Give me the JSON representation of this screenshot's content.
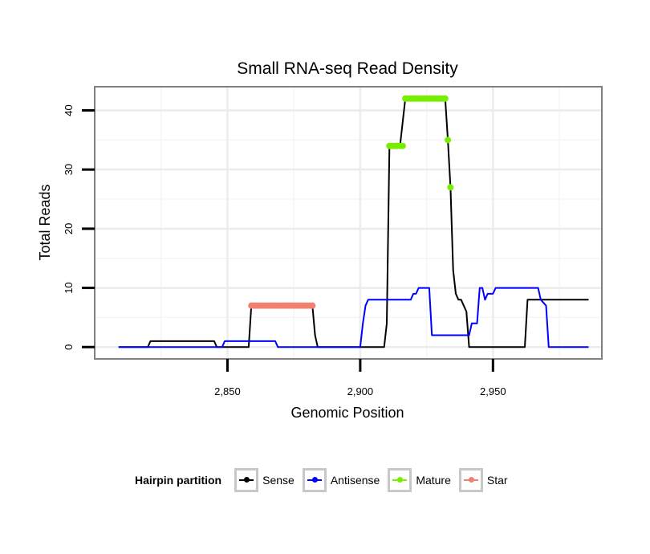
{
  "chart_data": {
    "type": "line",
    "title": "Small RNA-seq Read Density",
    "xlabel": "Genomic Position",
    "ylabel": "Total Reads",
    "xlim": [
      2800,
      2991
    ],
    "ylim": [
      -2,
      44
    ],
    "xticks": [
      2850,
      2900,
      2950
    ],
    "xtick_labels": [
      "2,850",
      "2,900",
      "2,950"
    ],
    "yticks": [
      0,
      10,
      20,
      30,
      40
    ],
    "ytick_labels": [
      "0",
      "10",
      "20",
      "30",
      "40"
    ],
    "grid": true,
    "legend_position": "bottom",
    "series": [
      {
        "name": "Sense",
        "color": "#000000",
        "style": "line",
        "x": [
          2809,
          2820,
          2821,
          2845,
          2846,
          2858,
          2859,
          2882,
          2883,
          2884,
          2909,
          2910,
          2911,
          2915,
          2916,
          2917,
          2932,
          2933,
          2934,
          2935,
          2936,
          2937,
          2938,
          2939,
          2940,
          2941,
          2962,
          2963,
          2986
        ],
        "y": [
          0,
          0,
          1,
          1,
          0,
          0,
          7,
          7,
          2,
          0,
          0,
          4,
          34,
          34,
          38,
          42,
          42,
          35,
          27,
          13,
          9,
          8,
          8,
          7,
          6,
          0,
          0,
          8,
          8
        ]
      },
      {
        "name": "Antisense",
        "color": "#0000ff",
        "style": "line",
        "x": [
          2809,
          2848,
          2849,
          2868,
          2869,
          2900,
          2901,
          2902,
          2903,
          2919,
          2920,
          2921,
          2922,
          2926,
          2927,
          2941,
          2942,
          2944,
          2945,
          2946,
          2947,
          2948,
          2949,
          2950,
          2951,
          2967,
          2968,
          2970,
          2971,
          2986
        ],
        "y": [
          0,
          0,
          1,
          1,
          0,
          0,
          4,
          7,
          8,
          8,
          9,
          9,
          10,
          10,
          2,
          2,
          4,
          4,
          10,
          10,
          8,
          9,
          9,
          9,
          10,
          10,
          8,
          7,
          0,
          0
        ]
      },
      {
        "name": "Mature",
        "color": "#76ee00",
        "style": "points",
        "x": [
          2911,
          2912,
          2913,
          2914,
          2915,
          2916,
          2917,
          2918,
          2919,
          2920,
          2921,
          2922,
          2923,
          2924,
          2925,
          2926,
          2927,
          2928,
          2929,
          2930,
          2931,
          2932,
          2933,
          2934
        ],
        "y": [
          34,
          34,
          34,
          34,
          34,
          34,
          42,
          42,
          42,
          42,
          42,
          42,
          42,
          42,
          42,
          42,
          42,
          42,
          42,
          42,
          42,
          42,
          35,
          27
        ]
      },
      {
        "name": "Star",
        "color": "#f08070",
        "style": "points",
        "x": [
          2859,
          2860,
          2861,
          2862,
          2863,
          2864,
          2865,
          2866,
          2867,
          2868,
          2869,
          2870,
          2871,
          2872,
          2873,
          2874,
          2875,
          2876,
          2877,
          2878,
          2879,
          2880,
          2881,
          2882
        ],
        "y": [
          7,
          7,
          7,
          7,
          7,
          7,
          7,
          7,
          7,
          7,
          7,
          7,
          7,
          7,
          7,
          7,
          7,
          7,
          7,
          7,
          7,
          7,
          7,
          7
        ]
      }
    ],
    "legend": {
      "title": "Hairpin partition",
      "items": [
        {
          "label": "Sense",
          "color": "#000000"
        },
        {
          "label": "Antisense",
          "color": "#0000ff"
        },
        {
          "label": "Mature",
          "color": "#76ee00"
        },
        {
          "label": "Star",
          "color": "#f08070"
        }
      ]
    }
  }
}
